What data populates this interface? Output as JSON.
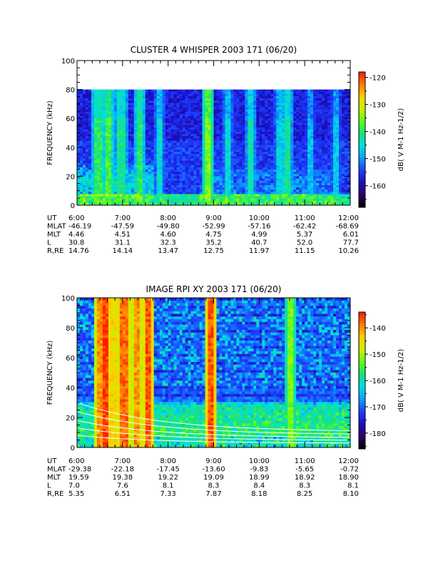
{
  "chart_data": [
    {
      "type": "heatmap",
      "title": "CLUSTER 4 WHISPER 2003 171 (06/20)",
      "ylabel": "FREQUENCY (kHz)",
      "xlim": [
        "6:00",
        "12:00"
      ],
      "ylim": [
        0,
        100
      ],
      "data_ylim": [
        0,
        80
      ],
      "y_ticks": [
        "0",
        "20",
        "40",
        "60",
        "80",
        "100"
      ],
      "x_ticks": [
        "6:00",
        "7:00",
        "8:00",
        "9:00",
        "10:00",
        "11:00",
        "12:00"
      ],
      "colorbar": {
        "label": "dB( V M-1 Hz-1/2)",
        "range": [
          -168,
          -118
        ],
        "ticks": [
          "-120",
          "-130",
          "-140",
          "-150",
          "-160"
        ],
        "palette": [
          "#000000",
          "#330066",
          "#1a0fbf",
          "#1f3dff",
          "#0aa0ff",
          "#00e0e0",
          "#19e07a",
          "#60ff1a",
          "#c8f000",
          "#ffd000",
          "#ff7a00",
          "#ff1a00"
        ]
      },
      "features": {
        "background_db": -155,
        "bursts": [
          {
            "t": "6:28",
            "db": -140
          },
          {
            "t": "6:42",
            "db": -138
          },
          {
            "t": "6:58",
            "db": -142
          },
          {
            "t": "7:22",
            "db": -140
          },
          {
            "t": "7:48",
            "db": -145
          },
          {
            "t": "8:52",
            "db": -135
          },
          {
            "t": "9:18",
            "db": -145
          },
          {
            "t": "9:48",
            "db": -143
          },
          {
            "t": "10:28",
            "db": -146
          },
          {
            "t": "10:38",
            "db": -142
          },
          {
            "t": "11:08",
            "db": -148
          },
          {
            "t": "11:40",
            "db": -147
          }
        ]
      },
      "ephemeris": {
        "rows": [
          {
            "label": "UT",
            "values": [
              "6:00",
              "7:00",
              "8:00",
              "9:00",
              "10:00",
              "11:00",
              "12:00"
            ]
          },
          {
            "label": "MLAT",
            "values": [
              "-46.19",
              "-47.59",
              "-49.80",
              "-52.99",
              "-57.16",
              "-62.42",
              "-68.69"
            ]
          },
          {
            "label": "MLT",
            "values": [
              "4.46",
              "4.51",
              "4.60",
              "4.75",
              "4.99",
              "5.37",
              "6.01"
            ]
          },
          {
            "label": "L",
            "values": [
              "30.8",
              "31.1",
              "32.3",
              "35.2",
              "40.7",
              "52.0",
              "77.7"
            ]
          },
          {
            "label": "R,RE",
            "values": [
              "14.76",
              "14.14",
              "13.47",
              "12.75",
              "11.97",
              "11.15",
              "10.26"
            ]
          }
        ]
      }
    },
    {
      "type": "heatmap",
      "title": "IMAGE RPI XY 2003 171 (06/20)",
      "ylabel": "FREQUENCY (kHz)",
      "xlim": [
        "6:00",
        "12:00"
      ],
      "ylim": [
        0,
        100
      ],
      "data_ylim": [
        0,
        100
      ],
      "y_ticks": [
        "0",
        "20",
        "40",
        "60",
        "80",
        "100"
      ],
      "x_ticks": [
        "6:00",
        "7:00",
        "8:00",
        "9:00",
        "10:00",
        "11:00",
        "12:00"
      ],
      "colorbar": {
        "label": "dB( V M-1 Hz-1/2)",
        "range": [
          -186,
          -134
        ],
        "ticks": [
          "-140",
          "-150",
          "-160",
          "-170",
          "-180"
        ],
        "palette": [
          "#000000",
          "#330066",
          "#1a0fbf",
          "#1f3dff",
          "#0aa0ff",
          "#00e0e0",
          "#19e07a",
          "#60ff1a",
          "#c8f000",
          "#ffd000",
          "#ff7a00",
          "#ff1a00"
        ]
      },
      "features": {
        "background_db": -170,
        "bursts": [
          {
            "t": "6:32",
            "db": -140
          },
          {
            "t": "6:38",
            "db": -136
          },
          {
            "t": "6:48",
            "db": -145
          },
          {
            "t": "7:02",
            "db": -138
          },
          {
            "t": "7:20",
            "db": -140
          },
          {
            "t": "7:35",
            "db": -137
          },
          {
            "t": "8:55",
            "db": -137
          },
          {
            "t": "10:40",
            "db": -152
          }
        ],
        "white_curves_kHz_at_start": [
          30,
          24,
          18,
          13,
          8
        ]
      },
      "ephemeris": {
        "rows": [
          {
            "label": "UT",
            "values": [
              "6:00",
              "7:00",
              "8:00",
              "9:00",
              "10:00",
              "11:00",
              "12:00"
            ]
          },
          {
            "label": "MLAT",
            "values": [
              "-29.38",
              "-22.18",
              "-17.45",
              "-13.60",
              "-9.83",
              "-5.65",
              "-0.72"
            ]
          },
          {
            "label": "MLT",
            "values": [
              "19.59",
              "19.38",
              "19.22",
              "19.09",
              "18.99",
              "18.92",
              "18.90"
            ]
          },
          {
            "label": "L",
            "values": [
              "7.0",
              "7.6",
              "8.1",
              "8.3",
              "8.4",
              "8.3",
              "8.1"
            ]
          },
          {
            "label": "R,RE",
            "values": [
              "5.35",
              "6.51",
              "7.33",
              "7.87",
              "8.18",
              "8.25",
              "8.10"
            ]
          }
        ]
      }
    }
  ]
}
